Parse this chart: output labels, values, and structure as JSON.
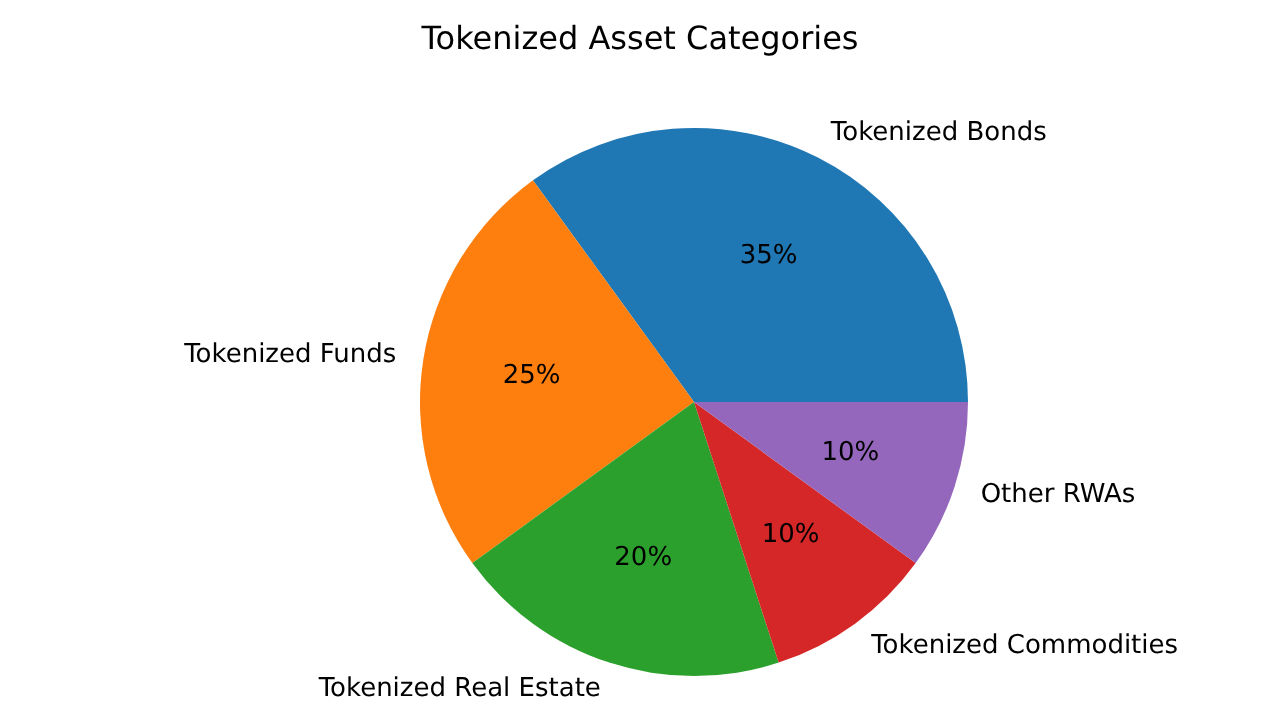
{
  "chart_data": {
    "type": "pie",
    "title": "Tokenized Asset Categories",
    "categories": [
      "Tokenized Bonds",
      "Tokenized Funds",
      "Tokenized Real Estate",
      "Tokenized Commodities",
      "Other RWAs"
    ],
    "values": [
      35,
      25,
      20,
      10,
      10
    ],
    "colors": [
      "#1f77b4",
      "#ff7f0e",
      "#2ca02c",
      "#d62728",
      "#9467bd"
    ],
    "value_labels": [
      "35%",
      "25%",
      "20%",
      "10%",
      "10%"
    ],
    "legend": false
  }
}
